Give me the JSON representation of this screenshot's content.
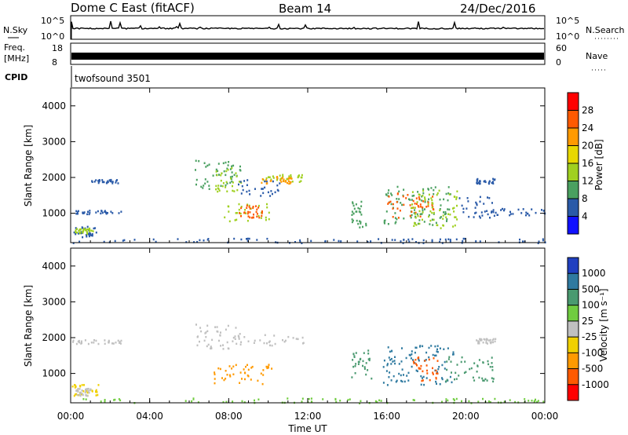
{
  "header": {
    "station": "Dome C East (fitACF)",
    "beam": "Beam 14",
    "date": "24/Dec/2016"
  },
  "top_panels": {
    "nsky_label": "N.Sky",
    "nsky_ticks": [
      "10^5",
      "10^0"
    ],
    "nsearch_label": "N.Search",
    "nsearch_ticks": [
      "10^5",
      "10^0"
    ],
    "freq_label": "Freq.",
    "freq_unit": "[MHz]",
    "freq_ticks": [
      "18",
      "8"
    ],
    "nave_label": "Nave",
    "nave_ticks": [
      "60",
      "0"
    ],
    "cpid_label": "CPID",
    "cpid_text": "twofsound 3501"
  },
  "chart_data": [
    {
      "type": "heatmap",
      "panel": "power",
      "ylabel": "Slant Range [km]",
      "xlabel": "",
      "y_ticks": [
        "4000",
        "3000",
        "2000",
        "1000"
      ],
      "ylim": [
        180,
        4500
      ],
      "x_ticks": [
        "00:00",
        "04:00",
        "08:00",
        "12:00",
        "16:00",
        "20:00",
        "00:00"
      ],
      "xlim_hours": [
        0,
        24
      ],
      "colorbar_label": "Power [dB]",
      "colorbar_ticks": [
        "28",
        "24",
        "20",
        "16",
        "12",
        "8",
        "4"
      ],
      "colorbar_colors": [
        "#ff0000",
        "#ff5a00",
        "#ff9a00",
        "#e8d800",
        "#a0d020",
        "#4aa060",
        "#2a5aa8",
        "#1010ff"
      ]
    },
    {
      "type": "heatmap",
      "panel": "velocity",
      "ylabel": "Slant Range [km]",
      "xlabel": "Time UT",
      "y_ticks": [
        "4000",
        "3000",
        "2000",
        "1000"
      ],
      "ylim": [
        180,
        4500
      ],
      "x_ticks": [
        "00:00",
        "04:00",
        "08:00",
        "12:00",
        "16:00",
        "20:00",
        "00:00"
      ],
      "xlim_hours": [
        0,
        24
      ],
      "colorbar_label": "Velocity [m s⁻¹]",
      "colorbar_ticks": [
        "1000",
        "500",
        "100",
        "25",
        "-25",
        "-100",
        "-500",
        "-1000"
      ],
      "colorbar_colors": [
        "#2040c0",
        "#2f7aa0",
        "#4a9a70",
        "#70cc40",
        "#c0c0c0",
        "#f0d000",
        "#ff9a00",
        "#ff5a00",
        "#ff0000"
      ]
    }
  ],
  "scatter_regions": {
    "power": [
      {
        "h0": 0.0,
        "h1": 1.3,
        "r0": 350,
        "r1": 650,
        "color": "#2a5aa8"
      },
      {
        "h0": 0.2,
        "h1": 1.1,
        "r0": 450,
        "r1": 600,
        "color": "#a0d020"
      },
      {
        "h0": 0.0,
        "h1": 2.6,
        "r0": 1000,
        "r1": 1100,
        "color": "#2a5aa8"
      },
      {
        "h0": 1.0,
        "h1": 2.4,
        "r0": 1860,
        "r1": 1960,
        "color": "#2a5aa8"
      },
      {
        "h0": 6.2,
        "h1": 8.6,
        "r0": 1700,
        "r1": 2500,
        "color": "#4aa060"
      },
      {
        "h0": 7.3,
        "h1": 8.6,
        "r0": 1600,
        "r1": 2300,
        "color": "#a0d020"
      },
      {
        "h0": 7.6,
        "h1": 10.1,
        "r0": 800,
        "r1": 1300,
        "color": "#a0d020"
      },
      {
        "h0": 8.5,
        "h1": 9.7,
        "r0": 900,
        "r1": 1250,
        "color": "#ff5a00"
      },
      {
        "h0": 8.2,
        "h1": 10.7,
        "r0": 1500,
        "r1": 2000,
        "color": "#2a5aa8"
      },
      {
        "h0": 9.7,
        "h1": 11.7,
        "r0": 1900,
        "r1": 2100,
        "color": "#a0d020"
      },
      {
        "h0": 9.5,
        "h1": 11.2,
        "r0": 1850,
        "r1": 2050,
        "color": "#ff9a00"
      },
      {
        "h0": 14.2,
        "h1": 15.0,
        "r0": 600,
        "r1": 1400,
        "color": "#4aa060"
      },
      {
        "h0": 15.8,
        "h1": 19.2,
        "r0": 700,
        "r1": 1800,
        "color": "#4aa060"
      },
      {
        "h0": 16.0,
        "h1": 18.5,
        "r0": 900,
        "r1": 1600,
        "color": "#ff5a00"
      },
      {
        "h0": 17.2,
        "h1": 19.6,
        "r0": 600,
        "r1": 1700,
        "color": "#a0d020"
      },
      {
        "h0": 19.5,
        "h1": 21.4,
        "r0": 900,
        "r1": 1500,
        "color": "#2a5aa8"
      },
      {
        "h0": 20.5,
        "h1": 21.5,
        "r0": 1850,
        "r1": 1990,
        "color": "#2a5aa8"
      },
      {
        "h0": 21.0,
        "h1": 24.0,
        "r0": 950,
        "r1": 1150,
        "color": "#2a5aa8"
      },
      {
        "h0": 0.0,
        "h1": 24.0,
        "r0": 190,
        "r1": 330,
        "color": "#2a5aa8"
      }
    ],
    "velocity": [
      {
        "h0": 0.0,
        "h1": 1.4,
        "r0": 400,
        "r1": 750,
        "color": "#f0d000"
      },
      {
        "h0": 0.2,
        "h1": 1.0,
        "r0": 400,
        "r1": 600,
        "color": "#c0c0c0"
      },
      {
        "h0": 0.0,
        "h1": 2.6,
        "r0": 1850,
        "r1": 1960,
        "color": "#c0c0c0"
      },
      {
        "h0": 6.2,
        "h1": 8.6,
        "r0": 1700,
        "r1": 2400,
        "color": "#c0c0c0"
      },
      {
        "h0": 7.2,
        "h1": 10.2,
        "r0": 700,
        "r1": 1300,
        "color": "#ff9a00"
      },
      {
        "h0": 8.2,
        "h1": 11.8,
        "r0": 1800,
        "r1": 2100,
        "color": "#c0c0c0"
      },
      {
        "h0": 14.2,
        "h1": 15.2,
        "r0": 800,
        "r1": 1700,
        "color": "#4a9a70"
      },
      {
        "h0": 15.8,
        "h1": 19.4,
        "r0": 700,
        "r1": 1800,
        "color": "#2f7aa0"
      },
      {
        "h0": 17.3,
        "h1": 18.6,
        "r0": 800,
        "r1": 1500,
        "color": "#ff5a00"
      },
      {
        "h0": 18.8,
        "h1": 21.4,
        "r0": 800,
        "r1": 1500,
        "color": "#4a9a70"
      },
      {
        "h0": 20.5,
        "h1": 21.5,
        "r0": 1850,
        "r1": 1990,
        "color": "#c0c0c0"
      },
      {
        "h0": 0.0,
        "h1": 24.0,
        "r0": 190,
        "r1": 330,
        "color": "#70cc40"
      }
    ]
  }
}
